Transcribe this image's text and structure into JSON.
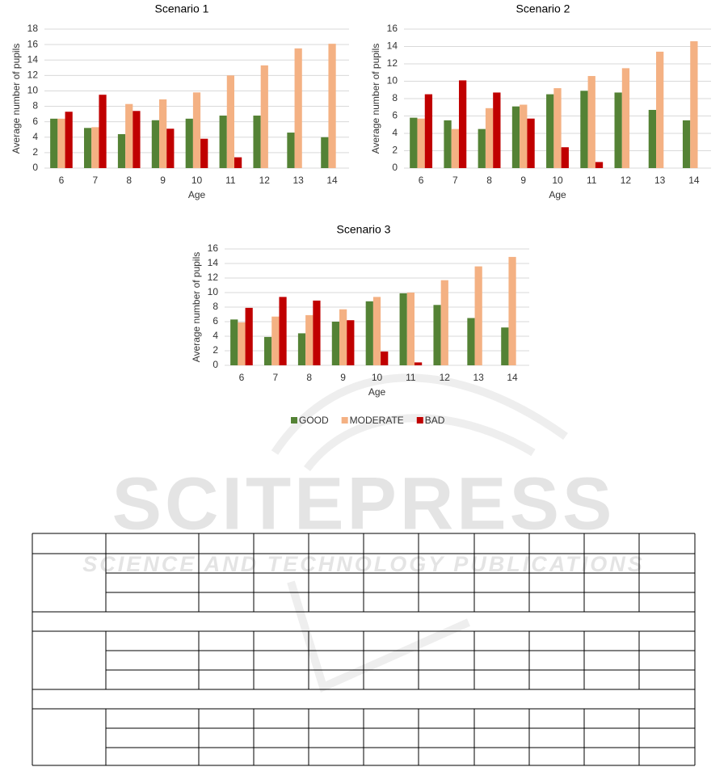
{
  "chart_data": [
    {
      "type": "bar",
      "title": "Scenario 1",
      "x_label": "Age",
      "y_label": "Average number of pupils",
      "categories": [
        "6",
        "7",
        "8",
        "9",
        "10",
        "11",
        "12",
        "13",
        "14"
      ],
      "series": [
        {
          "name": "GOOD",
          "color": "#548235",
          "values": [
            6.4,
            5.2,
            4.4,
            6.2,
            6.4,
            6.8,
            6.8,
            4.6,
            4.0
          ]
        },
        {
          "name": "MODERATE",
          "color": "#f4b183",
          "values": [
            6.4,
            5.3,
            8.3,
            8.9,
            9.8,
            12.0,
            13.3,
            15.5,
            16.1
          ]
        },
        {
          "name": "BAD",
          "color": "#c00000",
          "values": [
            7.3,
            9.5,
            7.4,
            5.1,
            3.8,
            1.4,
            0,
            0,
            0
          ]
        }
      ],
      "ylim": [
        0,
        18
      ],
      "yticks": [
        0,
        2,
        4,
        6,
        8,
        10,
        12,
        14,
        16,
        18
      ],
      "grid": true
    },
    {
      "type": "bar",
      "title": "Scenario 2",
      "x_label": "Age",
      "y_label": "Average number of pupils",
      "categories": [
        "6",
        "7",
        "8",
        "9",
        "10",
        "11",
        "12",
        "13",
        "14"
      ],
      "series": [
        {
          "name": "GOOD",
          "color": "#548235",
          "values": [
            5.8,
            5.5,
            4.5,
            7.1,
            8.5,
            8.9,
            8.7,
            6.7,
            5.5
          ]
        },
        {
          "name": "MODERATE",
          "color": "#f4b183",
          "values": [
            5.7,
            4.5,
            6.9,
            7.3,
            9.2,
            10.6,
            11.5,
            13.4,
            14.6
          ]
        },
        {
          "name": "BAD",
          "color": "#c00000",
          "values": [
            8.5,
            10.1,
            8.7,
            5.7,
            2.4,
            0.7,
            0,
            0,
            0
          ]
        }
      ],
      "ylim": [
        0,
        16
      ],
      "yticks": [
        0,
        2,
        4,
        6,
        8,
        10,
        12,
        14,
        16
      ],
      "grid": true
    },
    {
      "type": "bar",
      "title": "Scenario 3",
      "x_label": "Age",
      "y_label": "Average number of pupils",
      "categories": [
        "6",
        "7",
        "8",
        "9",
        "10",
        "11",
        "12",
        "13",
        "14"
      ],
      "series": [
        {
          "name": "GOOD",
          "color": "#548235",
          "values": [
            6.3,
            3.9,
            4.4,
            6.0,
            8.8,
            9.9,
            8.3,
            6.5,
            5.2
          ]
        },
        {
          "name": "MODERATE",
          "color": "#f4b183",
          "values": [
            5.9,
            6.7,
            6.9,
            7.7,
            9.4,
            10.0,
            11.7,
            13.6,
            14.9
          ]
        },
        {
          "name": "BAD",
          "color": "#c00000",
          "values": [
            7.9,
            9.4,
            8.9,
            6.2,
            1.9,
            0.4,
            0,
            0,
            0
          ]
        }
      ],
      "ylim": [
        0,
        16
      ],
      "yticks": [
        0,
        2,
        4,
        6,
        8,
        10,
        12,
        14,
        16
      ],
      "grid": true
    }
  ],
  "watermark": {
    "title": "SCITEPRESS",
    "subtitle": "SCIENCE AND TECHNOLOGY PUBLICATIONS"
  }
}
